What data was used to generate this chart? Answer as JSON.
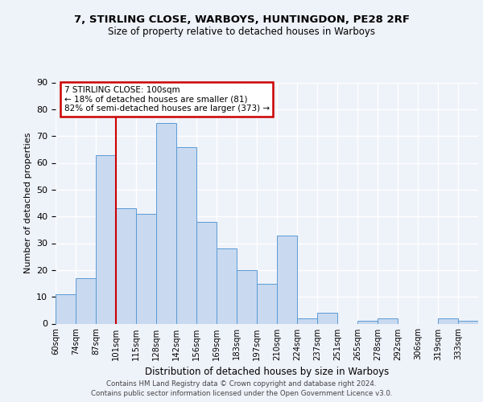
{
  "title1": "7, STIRLING CLOSE, WARBOYS, HUNTINGDON, PE28 2RF",
  "title2": "Size of property relative to detached houses in Warboys",
  "xlabel": "Distribution of detached houses by size in Warboys",
  "ylabel": "Number of detached properties",
  "bin_labels": [
    "60sqm",
    "74sqm",
    "87sqm",
    "101sqm",
    "115sqm",
    "128sqm",
    "142sqm",
    "156sqm",
    "169sqm",
    "183sqm",
    "197sqm",
    "210sqm",
    "224sqm",
    "237sqm",
    "251sqm",
    "265sqm",
    "278sqm",
    "292sqm",
    "306sqm",
    "319sqm",
    "333sqm"
  ],
  "bar_values": [
    11,
    17,
    63,
    43,
    41,
    75,
    66,
    38,
    28,
    20,
    15,
    33,
    2,
    4,
    0,
    1,
    2,
    0,
    0,
    2,
    1
  ],
  "bar_color": "#c8d9f0",
  "bar_edge_color": "#5b9bd5",
  "vline_x_index": 3,
  "vline_color": "#cc0000",
  "annotation_text": "7 STIRLING CLOSE: 100sqm\n← 18% of detached houses are smaller (81)\n82% of semi-detached houses are larger (373) →",
  "annotation_box_color": "#ffffff",
  "annotation_box_edge_color": "#cc0000",
  "ylim": [
    0,
    90
  ],
  "yticks": [
    0,
    10,
    20,
    30,
    40,
    50,
    60,
    70,
    80,
    90
  ],
  "footer_line1": "Contains HM Land Registry data © Crown copyright and database right 2024.",
  "footer_line2": "Contains public sector information licensed under the Open Government Licence v3.0.",
  "bg_color": "#eef2f9",
  "grid_color": "#ffffff"
}
